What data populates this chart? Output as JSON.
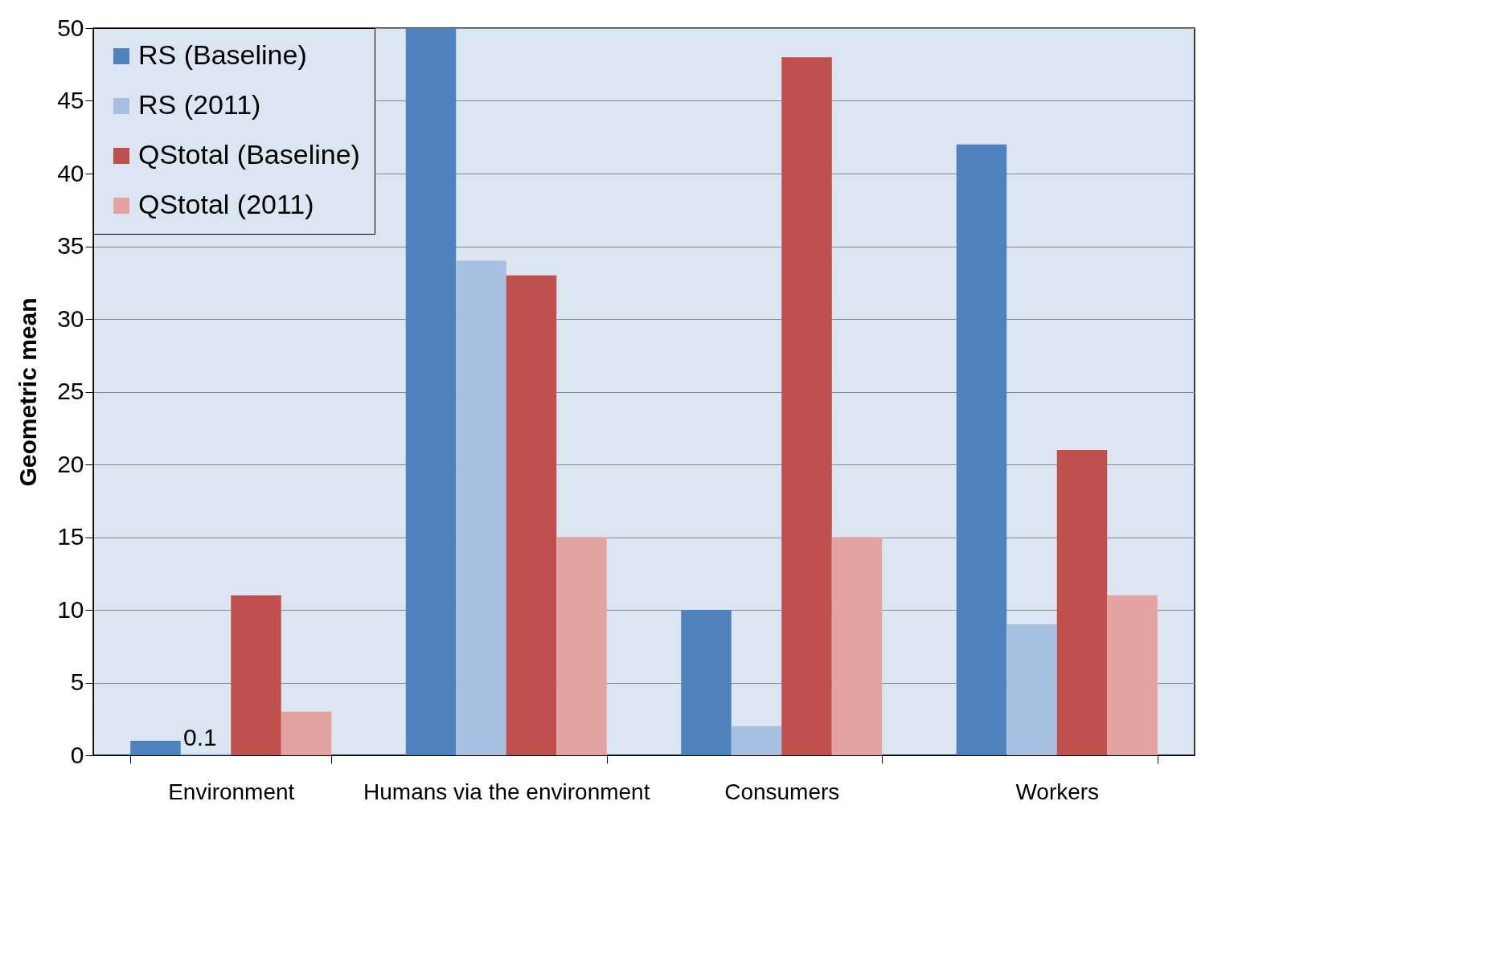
{
  "chart_data": {
    "type": "bar",
    "ylabel": "Geometric mean",
    "categories": [
      "Environment",
      "Humans via the environment",
      "Consumers",
      "Workers"
    ],
    "series": [
      {
        "name": "RS (Baseline)",
        "color": "#4f81bd",
        "values": [
          1,
          50,
          10,
          42
        ]
      },
      {
        "name": "RS (2011)",
        "color": "#a7bfe0",
        "values": [
          0.1,
          34,
          2,
          9
        ],
        "value_labels": [
          "0.1",
          null,
          null,
          null
        ]
      },
      {
        "name": "QStotal (Baseline)",
        "color": "#c0504d",
        "values": [
          11,
          33,
          48,
          21
        ]
      },
      {
        "name": "QStotal (2011)",
        "color": "#e3a3a1",
        "values": [
          3,
          15,
          15,
          11
        ]
      }
    ],
    "ylim": [
      0,
      50
    ],
    "yticks": [
      0,
      5,
      10,
      15,
      20,
      25,
      30,
      35,
      40,
      45,
      50
    ],
    "grid": "y",
    "legend": "top left"
  }
}
